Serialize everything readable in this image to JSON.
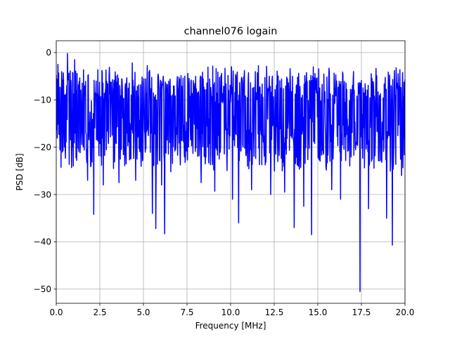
{
  "chart_data": {
    "type": "line",
    "title": "channel076 logain",
    "xlabel": "Frequency [MHz]",
    "ylabel": "PSD [dB]",
    "xlim": [
      0,
      20
    ],
    "ylim": [
      -53,
      2.5
    ],
    "xticks": [
      0,
      2.5,
      5,
      7.5,
      10,
      12.5,
      15,
      17.5,
      20
    ],
    "xtick_labels": [
      "0.0",
      "2.5",
      "5.0",
      "7.5",
      "10.0",
      "12.5",
      "15.0",
      "17.5",
      "20.0"
    ],
    "yticks": [
      0,
      -10,
      -20,
      -30,
      -40,
      -50
    ],
    "ytick_labels": [
      "0",
      "−10",
      "−20",
      "−30",
      "−40",
      "−50"
    ],
    "grid": true,
    "series_color": "#0000ff",
    "series": [
      {
        "num_points": 1024,
        "baseline_db": -12.5,
        "upper_envelope_db": -4,
        "lower_envelope_db": -24,
        "peaks": [
          {
            "x": 0.64,
            "y": -0.2
          },
          {
            "x": 0.1,
            "y": -2.5
          },
          {
            "x": 1.05,
            "y": -1.5
          },
          {
            "x": 4.35,
            "y": -2.2
          },
          {
            "x": 10.05,
            "y": -3.0
          },
          {
            "x": 19.6,
            "y": -4.5
          }
        ],
        "dips": [
          {
            "x": 2.15,
            "y": -34.2
          },
          {
            "x": 5.52,
            "y": -34.0
          },
          {
            "x": 5.7,
            "y": -37.2
          },
          {
            "x": 6.22,
            "y": -38.3
          },
          {
            "x": 10.45,
            "y": -36.0
          },
          {
            "x": 13.65,
            "y": -37.0
          },
          {
            "x": 14.65,
            "y": -38.5
          },
          {
            "x": 17.42,
            "y": -50.5
          },
          {
            "x": 18.95,
            "y": -35.0
          },
          {
            "x": 19.28,
            "y": -40.7
          },
          {
            "x": 1.8,
            "y": -27.0
          },
          {
            "x": 2.7,
            "y": -28.0
          },
          {
            "x": 3.6,
            "y": -27.5
          },
          {
            "x": 4.55,
            "y": -27.0
          },
          {
            "x": 6.05,
            "y": -28.0
          },
          {
            "x": 8.3,
            "y": -27.5
          },
          {
            "x": 9.1,
            "y": -29.3
          },
          {
            "x": 10.1,
            "y": -31.0
          },
          {
            "x": 11.2,
            "y": -29.0
          },
          {
            "x": 12.3,
            "y": -30.0
          },
          {
            "x": 13.1,
            "y": -29.5
          },
          {
            "x": 14.2,
            "y": -32.5
          },
          {
            "x": 15.8,
            "y": -29.0
          },
          {
            "x": 16.3,
            "y": -31.0
          },
          {
            "x": 17.9,
            "y": -33.0
          },
          {
            "x": 19.8,
            "y": -26.0
          }
        ]
      }
    ]
  }
}
